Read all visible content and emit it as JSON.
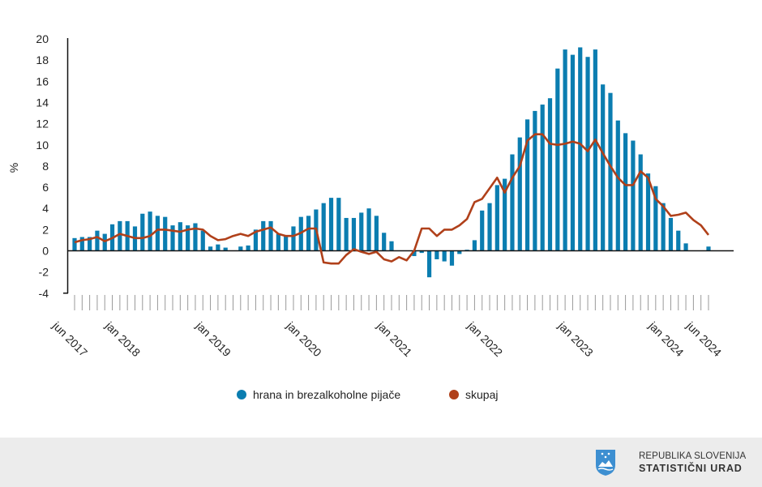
{
  "chart_data": {
    "type": "bar+line",
    "ylabel": "%",
    "ylim": [
      -4,
      20
    ],
    "yticks": [
      -4,
      -2,
      0,
      2,
      4,
      6,
      8,
      10,
      12,
      14,
      16,
      18,
      20
    ],
    "start": "jun 2017",
    "end": "jun 2024",
    "frequency": "monthly",
    "x_tick_labels": [
      {
        "index": 0,
        "label": "jun 2017"
      },
      {
        "index": 7,
        "label": "jan 2018"
      },
      {
        "index": 19,
        "label": "jan 2019"
      },
      {
        "index": 31,
        "label": "jan 2020"
      },
      {
        "index": 43,
        "label": "jan 2021"
      },
      {
        "index": 55,
        "label": "jan 2022"
      },
      {
        "index": 67,
        "label": "jan 2023"
      },
      {
        "index": 79,
        "label": "jan 2024"
      },
      {
        "index": 84,
        "label": "jun 2024"
      }
    ],
    "series": [
      {
        "name": "hrana in brezalkoholne pijače",
        "type": "bar",
        "color": "#0b7db0",
        "values": [
          1.2,
          1.3,
          1.3,
          1.9,
          1.6,
          2.5,
          2.8,
          2.8,
          2.3,
          3.5,
          3.7,
          3.3,
          3.2,
          2.4,
          2.7,
          2.4,
          2.6,
          1.9,
          0.4,
          0.6,
          0.3,
          0,
          0.4,
          0.5,
          2.0,
          2.8,
          2.8,
          1.6,
          1.4,
          2.3,
          3.2,
          3.3,
          3.9,
          4.5,
          5.0,
          5.0,
          3.1,
          3.1,
          3.6,
          4.0,
          3.3,
          1.7,
          0.9,
          0,
          0,
          -0.5,
          -0.2,
          -2.5,
          -0.8,
          -1.0,
          -1.4,
          -0.3,
          0.1,
          1.0,
          3.8,
          4.5,
          6.2,
          6.8,
          9.1,
          10.7,
          12.4,
          13.2,
          13.8,
          14.4,
          17.2,
          19.0,
          18.5,
          19.2,
          18.3,
          19.0,
          15.7,
          14.9,
          12.3,
          11.1,
          10.4,
          9.1,
          7.3,
          6.1,
          4.5,
          3.1,
          1.9,
          0.7,
          0,
          0,
          0.4
        ]
      },
      {
        "name": "skupaj",
        "type": "line",
        "color": "#b0401a",
        "values": [
          0.8,
          1.0,
          1.1,
          1.3,
          0.9,
          1.2,
          1.6,
          1.4,
          1.2,
          1.2,
          1.4,
          2.0,
          2.0,
          1.9,
          1.8,
          2.0,
          2.1,
          2.0,
          1.4,
          1.0,
          1.1,
          1.4,
          1.6,
          1.4,
          1.8,
          2.0,
          2.2,
          1.6,
          1.4,
          1.4,
          1.7,
          2.1,
          2.1,
          -1.1,
          -1.2,
          -1.2,
          -0.4,
          0.15,
          -0.1,
          -0.3,
          -0.1,
          -0.8,
          -1.0,
          -0.6,
          -0.9,
          0.0,
          2.1,
          2.1,
          1.4,
          2.0,
          2.0,
          2.4,
          3.0,
          4.6,
          4.9,
          5.9,
          6.9,
          5.5,
          6.9,
          8.0,
          10.4,
          11.0,
          11.0,
          10.1,
          10.0,
          10.1,
          10.3,
          10.1,
          9.4,
          10.5,
          9.2,
          8.0,
          6.9,
          6.2,
          6.2,
          7.5,
          6.9,
          4.9,
          4.2,
          3.3,
          3.4,
          3.6,
          2.9,
          2.4,
          1.5
        ]
      }
    ],
    "legend": "bottom-center"
  },
  "footer": {
    "org_line1": "REPUBLIKA SLOVENIJA",
    "org_line2": "STATISTIČNI URAD"
  }
}
